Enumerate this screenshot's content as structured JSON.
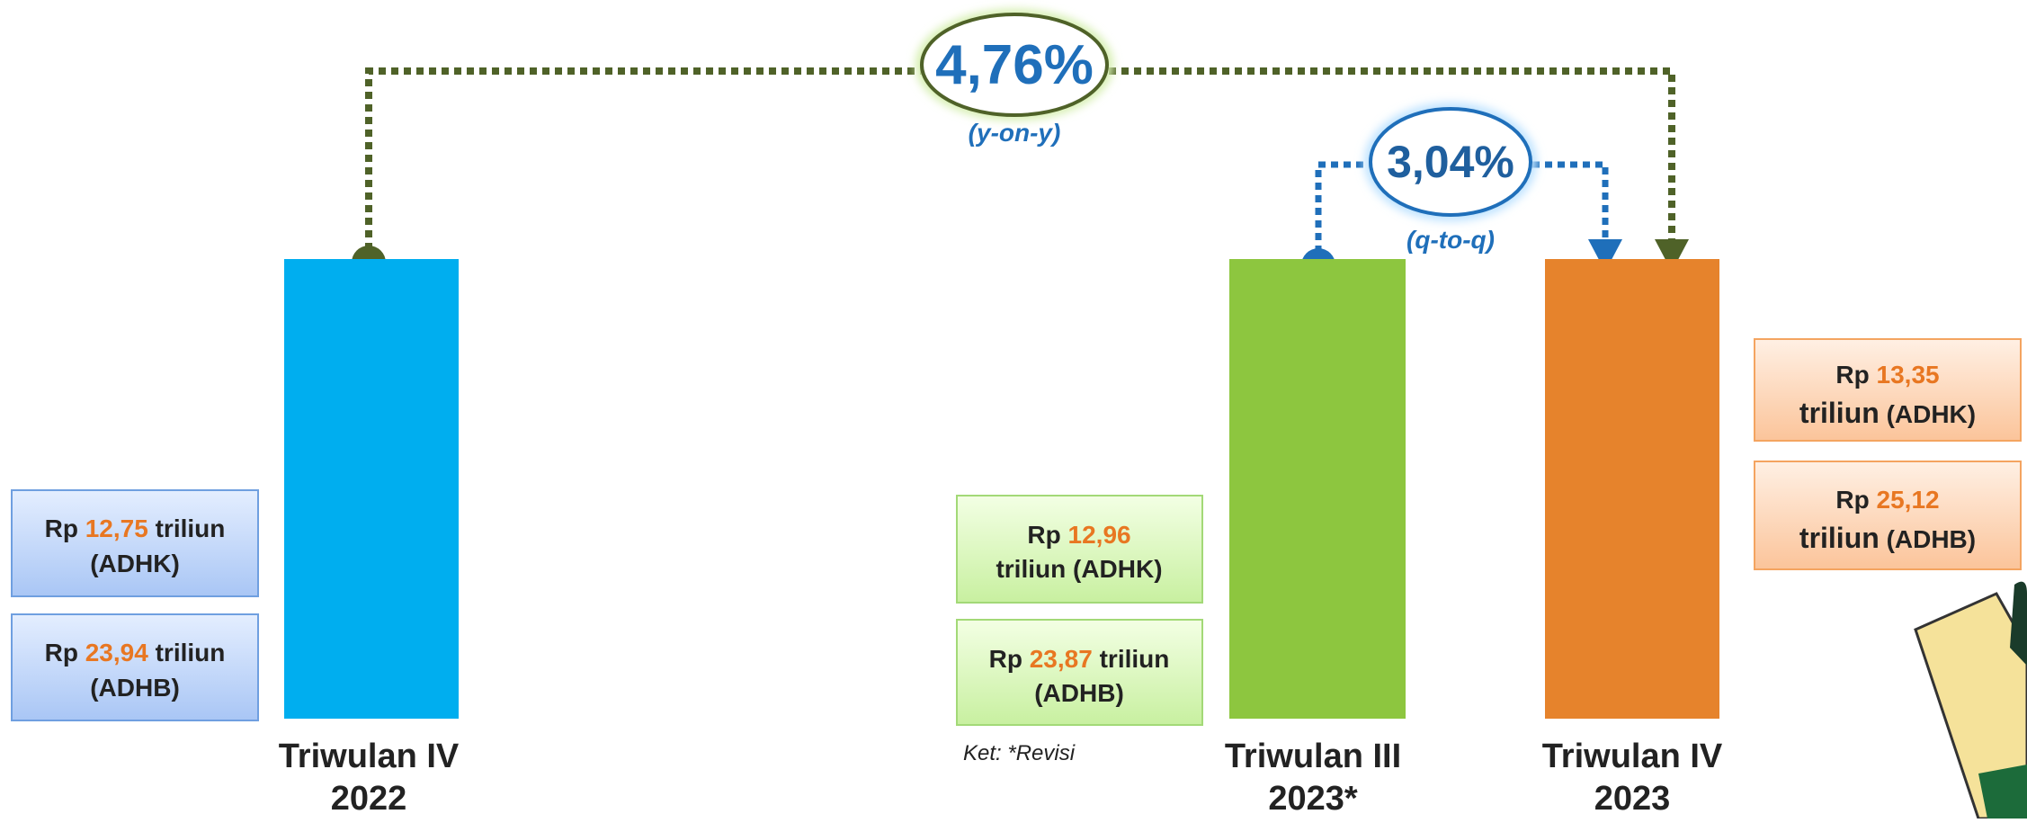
{
  "growth_yoy": {
    "value": "4,76%",
    "label": "(y-on-y)"
  },
  "growth_qtq": {
    "value": "3,04%",
    "label": "(q-to-q)"
  },
  "periods": [
    {
      "label": [
        "Triwulan IV",
        "2022"
      ],
      "adhk": {
        "prefix": "Rp",
        "amount": "12,75",
        "unit": "triliun",
        "basis": "(ADHK)"
      },
      "adhb": {
        "prefix": "Rp",
        "amount": "23,94",
        "unit": "triliun",
        "basis": "(ADHB)"
      }
    },
    {
      "label": [
        "Triwulan III",
        "2023*"
      ],
      "adhk": {
        "prefix": "Rp",
        "amount": "12,96",
        "unit": "triliun",
        "basis": "(ADHK)"
      },
      "adhb": {
        "prefix": "Rp",
        "amount": "23,87",
        "unit": "triliun",
        "basis": "(ADHB)"
      }
    },
    {
      "label": [
        "Triwulan IV",
        "2023"
      ],
      "adhk": {
        "prefix": "Rp",
        "amount": "13,35",
        "unit": "triliun",
        "basis": "(ADHK)"
      },
      "adhb": {
        "prefix": "Rp",
        "amount": "25,12",
        "unit": "triliun",
        "basis": "(ADHB)"
      }
    }
  ],
  "note": "Ket: *Revisi"
}
